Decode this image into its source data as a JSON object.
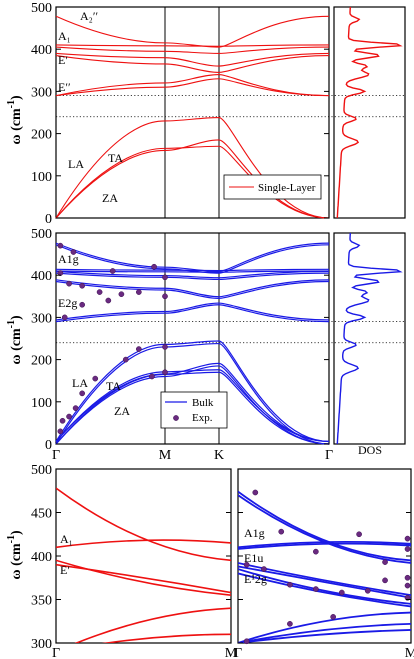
{
  "chart_data": [
    {
      "type": "line",
      "panel": "single-layer",
      "ylabel": "ω (cm⁻¹)",
      "ylim": [
        0,
        500
      ],
      "yticks": [
        0,
        100,
        200,
        300,
        400,
        500
      ],
      "x_ticks": [
        "Γ",
        "M",
        "K",
        "Γ"
      ],
      "legend": "Single-Layer",
      "legend_position": "center-right",
      "color": "#ee1111",
      "mode_labels": [
        "A₂′′",
        "A₁",
        "E′",
        "E′′",
        "TA",
        "LA",
        "ZA"
      ],
      "reference_lines": [
        290,
        240
      ],
      "series": [
        {
          "values": [
            0,
            165,
            170,
            0
          ]
        },
        {
          "values": [
            0,
            160,
            185,
            0
          ]
        },
        {
          "values": [
            0,
            230,
            238,
            0
          ]
        },
        {
          "values": [
            290,
            310,
            330,
            290
          ]
        },
        {
          "values": [
            290,
            320,
            340,
            290
          ]
        },
        {
          "values": [
            385,
            365,
            345,
            385
          ]
        },
        {
          "values": [
            390,
            380,
            360,
            390
          ]
        },
        {
          "values": [
            405,
            395,
            390,
            405
          ]
        },
        {
          "values": [
            410,
            408,
            407,
            410
          ]
        },
        {
          "values": [
            478,
            415,
            405,
            478
          ]
        }
      ]
    },
    {
      "type": "line",
      "panel": "bulk",
      "ylabel": "ω (cm⁻¹)",
      "ylim": [
        0,
        500
      ],
      "yticks": [
        0,
        100,
        200,
        300,
        400,
        500
      ],
      "x_ticks": [
        "Γ",
        "M",
        "K",
        "Γ"
      ],
      "legend": [
        "Bulk",
        "Exp."
      ],
      "legend_position": "bottom-center",
      "color": "#1a1ae6",
      "mode_labels": [
        "A1g",
        "E2g",
        "TA",
        "LA",
        "ZA"
      ],
      "reference_lines": [
        290,
        240
      ],
      "series": [
        {
          "values": [
            0,
            165,
            170,
            0
          ]
        },
        {
          "values": [
            0,
            160,
            185,
            0
          ]
        },
        {
          "values": [
            0,
            230,
            238,
            0
          ]
        },
        {
          "values": [
            290,
            310,
            330,
            290
          ]
        },
        {
          "values": [
            385,
            365,
            345,
            385
          ]
        },
        {
          "values": [
            405,
            395,
            390,
            405
          ]
        },
        {
          "values": [
            410,
            408,
            407,
            410
          ]
        },
        {
          "values": [
            472,
            415,
            405,
            472
          ]
        }
      ],
      "experimental_points": [
        [
          0.02,
          30
        ],
        [
          0.03,
          55
        ],
        [
          0.06,
          65
        ],
        [
          0.09,
          85
        ],
        [
          0.12,
          120
        ],
        [
          0.18,
          155
        ],
        [
          0.32,
          200
        ],
        [
          0.38,
          225
        ],
        [
          0.5,
          230
        ],
        [
          0.44,
          160
        ],
        [
          0.5,
          170
        ],
        [
          0.02,
          470
        ],
        [
          0.08,
          455
        ],
        [
          0.26,
          410
        ],
        [
          0.45,
          420
        ],
        [
          0.5,
          395
        ],
        [
          0.02,
          405
        ],
        [
          0.06,
          380
        ],
        [
          0.12,
          375
        ],
        [
          0.2,
          360
        ],
        [
          0.3,
          355
        ],
        [
          0.38,
          360
        ],
        [
          0.5,
          350
        ],
        [
          0.04,
          300
        ],
        [
          0.12,
          330
        ],
        [
          0.24,
          340
        ]
      ]
    },
    {
      "type": "line",
      "panel": "zoom-single-layer",
      "ylim": [
        300,
        500
      ],
      "yticks": [
        300,
        350,
        400,
        450,
        500
      ],
      "x_ticks": [
        "Γ",
        "M"
      ],
      "color": "#ee1111",
      "mode_labels": [
        "A₁",
        "E′"
      ],
      "series": [
        {
          "values": [
            478,
            420,
            395
          ]
        },
        {
          "values": [
            410,
            418,
            415
          ]
        },
        {
          "values": [
            395,
            370,
            355
          ]
        },
        {
          "values": [
            390,
            375,
            358
          ]
        },
        {
          "values": [
            290,
            325,
            340
          ]
        },
        {
          "values": [
            290,
            305,
            310
          ]
        }
      ]
    },
    {
      "type": "line",
      "panel": "zoom-bulk",
      "ylim": [
        300,
        500
      ],
      "x_ticks": [
        "Γ",
        "M"
      ],
      "color": "#1a1ae6",
      "mode_labels": [
        "A1g",
        "E1u",
        "E¹2g"
      ],
      "series": [
        {
          "values": [
            474,
            418,
            395
          ]
        },
        {
          "values": [
            470,
            416,
            392
          ]
        },
        {
          "values": [
            410,
            416,
            414
          ]
        },
        {
          "values": [
            408,
            414,
            412
          ]
        },
        {
          "values": [
            392,
            372,
            355
          ]
        },
        {
          "values": [
            388,
            370,
            352
          ]
        },
        {
          "values": [
            385,
            360,
            345
          ]
        },
        {
          "values": [
            380,
            358,
            342
          ]
        },
        {
          "values": [
            300,
            325,
            335
          ]
        },
        {
          "values": [
            300,
            315,
            322
          ]
        },
        {
          "values": [
            300,
            310,
            315
          ]
        }
      ],
      "experimental_points": [
        [
          0.1,
          473
        ],
        [
          0.25,
          428
        ],
        [
          0.45,
          405
        ],
        [
          0.7,
          425
        ],
        [
          0.85,
          393
        ],
        [
          0.98,
          420
        ],
        [
          0.98,
          408
        ],
        [
          0.05,
          390
        ],
        [
          0.15,
          385
        ],
        [
          0.3,
          367
        ],
        [
          0.45,
          362
        ],
        [
          0.6,
          358
        ],
        [
          0.75,
          360
        ],
        [
          0.85,
          372
        ],
        [
          0.98,
          375
        ],
        [
          0.98,
          366
        ],
        [
          0.05,
          302
        ],
        [
          0.3,
          322
        ],
        [
          0.55,
          330
        ],
        [
          0.98,
          352
        ]
      ]
    }
  ],
  "labels": {
    "omega_unit": "ω (cm",
    "omega_exp": "-1",
    "omega_close": ")",
    "dos": "DOS",
    "bulk": "Bulk",
    "exp": "Exp.",
    "single_layer": "Single-Layer"
  }
}
